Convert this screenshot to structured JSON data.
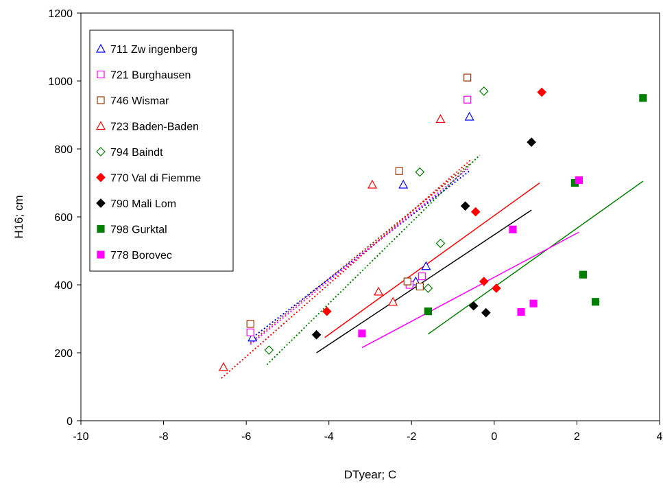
{
  "chart_data": {
    "type": "scatter",
    "title": "",
    "xlabel": "DTyear;  C",
    "ylabel": "H16;  cm",
    "xlim": [
      -10,
      4
    ],
    "ylim": [
      0,
      1200
    ],
    "xticks": [
      -10,
      -8,
      -6,
      -4,
      -2,
      0,
      2,
      4
    ],
    "yticks": [
      0,
      200,
      400,
      600,
      800,
      1000,
      1200
    ],
    "grid": false,
    "legend_position": "top-left inside plot",
    "series": [
      {
        "name": "711 Zw ingenberg",
        "marker": "triangle",
        "filled": false,
        "color": "#0000FF",
        "points": [
          [
            -5.85,
            245
          ],
          [
            -2.2,
            695
          ],
          [
            -1.65,
            455
          ],
          [
            -1.9,
            410
          ],
          [
            -0.6,
            895
          ]
        ],
        "trend": {
          "style": "dotted",
          "from": [
            -5.9,
            240
          ],
          "to": [
            -0.6,
            735
          ]
        }
      },
      {
        "name": "721 Burghausen",
        "marker": "square",
        "filled": false,
        "color": "#FF00FF",
        "points": [
          [
            -5.9,
            260
          ],
          [
            -2.05,
            400
          ],
          [
            -1.75,
            425
          ],
          [
            -0.65,
            945
          ]
        ],
        "trend": {
          "style": "dotted",
          "from": [
            -5.9,
            225
          ],
          "to": [
            -0.6,
            745
          ]
        }
      },
      {
        "name": "746 Wismar",
        "marker": "square",
        "filled": false,
        "color": "#993300",
        "points": [
          [
            -5.9,
            285
          ],
          [
            -2.3,
            735
          ],
          [
            -2.1,
            410
          ],
          [
            -1.8,
            395
          ],
          [
            -0.65,
            1010
          ]
        ],
        "trend": {
          "style": "dotted",
          "from": [
            -5.9,
            230
          ],
          "to": [
            -0.6,
            755
          ]
        }
      },
      {
        "name": "723 Baden-Baden",
        "marker": "triangle",
        "filled": false,
        "color": "#FF0000",
        "points": [
          [
            -6.55,
            158
          ],
          [
            -2.95,
            695
          ],
          [
            -2.8,
            380
          ],
          [
            -2.45,
            350
          ],
          [
            -1.3,
            888
          ]
        ],
        "trend": {
          "style": "dotted",
          "from": [
            -6.6,
            125
          ],
          "to": [
            -0.55,
            770
          ]
        }
      },
      {
        "name": "794 Baindt",
        "marker": "diamond",
        "filled": false,
        "color": "#008000",
        "points": [
          [
            -5.45,
            208
          ],
          [
            -1.8,
            732
          ],
          [
            -1.3,
            522
          ],
          [
            -1.6,
            390
          ],
          [
            -0.25,
            970
          ]
        ],
        "trend": {
          "style": "dotted",
          "from": [
            -5.5,
            165
          ],
          "to": [
            -0.35,
            782
          ]
        }
      },
      {
        "name": "770 Val di Fiemme",
        "marker": "diamond",
        "filled": true,
        "color": "#FF0000",
        "points": [
          [
            -4.05,
            322
          ],
          [
            -0.45,
            615
          ],
          [
            -0.25,
            410
          ],
          [
            0.05,
            390
          ],
          [
            1.15,
            967
          ]
        ],
        "trend": {
          "style": "solid",
          "from": [
            -4.1,
            245
          ],
          "to": [
            1.1,
            700
          ]
        }
      },
      {
        "name": "790 Mali Lom",
        "marker": "diamond",
        "filled": true,
        "color": "#000000",
        "points": [
          [
            -4.3,
            253
          ],
          [
            -0.7,
            632
          ],
          [
            -0.5,
            338
          ],
          [
            -0.2,
            318
          ],
          [
            0.9,
            820
          ]
        ],
        "trend": {
          "style": "solid",
          "from": [
            -4.3,
            200
          ],
          "to": [
            0.9,
            620
          ]
        }
      },
      {
        "name": "798 Gurktal",
        "marker": "square",
        "filled": true,
        "color": "#008000",
        "points": [
          [
            -1.6,
            322
          ],
          [
            1.95,
            700
          ],
          [
            2.15,
            430
          ],
          [
            2.45,
            350
          ],
          [
            3.6,
            950
          ]
        ],
        "trend": {
          "style": "solid",
          "from": [
            -1.6,
            255
          ],
          "to": [
            3.6,
            705
          ]
        }
      },
      {
        "name": "778 Borovec",
        "marker": "square",
        "filled": true,
        "color": "#FF00FF",
        "points": [
          [
            -3.2,
            257
          ],
          [
            0.45,
            563
          ],
          [
            0.65,
            320
          ],
          [
            0.95,
            345
          ],
          [
            2.05,
            708
          ]
        ],
        "trend": {
          "style": "solid",
          "from": [
            -3.2,
            215
          ],
          "to": [
            2.05,
            555
          ]
        }
      }
    ]
  }
}
